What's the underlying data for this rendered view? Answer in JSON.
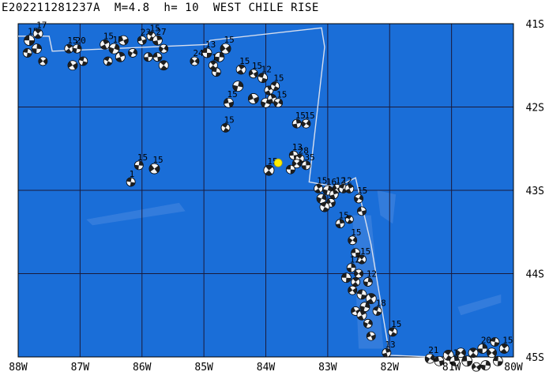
{
  "title": "E202211281237A  M=4.8  h= 10  WEST CHILE RISE",
  "colors": {
    "ocean": "#1a6ed8",
    "shallow": "#3f82de",
    "ridge_line": "#d8dfee",
    "grid": "#1a1a3a",
    "epicenter": "#ffee00",
    "beachball_dark": "#1e1e1e",
    "beachball_light": "#f4f4f4"
  },
  "axes": {
    "x_ticks": [
      "88W",
      "87W",
      "86W",
      "85W",
      "84W",
      "83W",
      "82W",
      "81W",
      "80W"
    ],
    "y_ticks": [
      "41S",
      "42S",
      "43S",
      "44S",
      "45S"
    ],
    "lon_range": [
      -88,
      -80
    ],
    "lat_range": [
      -45,
      -41
    ]
  },
  "epicenter": {
    "name": "E202211281237A",
    "lon": -83.8,
    "lat": -42.67
  },
  "ridge_segments": [
    [
      [
        -88.0,
        -41.15
      ],
      [
        -87.5,
        -41.15
      ],
      [
        -87.45,
        -41.33
      ],
      [
        -84.95,
        -41.25
      ],
      [
        -84.9,
        -41.2
      ],
      [
        -83.1,
        -41.05
      ],
      [
        -83.05,
        -41.28
      ],
      [
        -83.3,
        -42.9
      ],
      [
        -82.85,
        -42.96
      ],
      [
        -82.55,
        -42.85
      ],
      [
        -82.3,
        -43.65
      ],
      [
        -82.0,
        -44.98
      ],
      [
        -81.3,
        -45.0
      ]
    ]
  ],
  "mechanisms": [
    {
      "lon": -87.82,
      "lat": -41.2,
      "label": "15",
      "s": 13
    },
    {
      "lon": -87.68,
      "lat": -41.12,
      "label": "17",
      "s": 12
    },
    {
      "lon": -87.7,
      "lat": -41.3,
      "label": "",
      "s": 12
    },
    {
      "lon": -87.6,
      "lat": -41.45,
      "label": "",
      "s": 11
    },
    {
      "lon": -87.85,
      "lat": -41.35,
      "label": "",
      "s": 11
    },
    {
      "lon": -87.18,
      "lat": -41.3,
      "label": "15",
      "s": 11
    },
    {
      "lon": -87.05,
      "lat": -41.3,
      "label": "20",
      "s": 11
    },
    {
      "lon": -87.12,
      "lat": -41.5,
      "label": "",
      "s": 12
    },
    {
      "lon": -86.95,
      "lat": -41.45,
      "label": "",
      "s": 11
    },
    {
      "lon": -86.6,
      "lat": -41.25,
      "label": "15",
      "s": 12
    },
    {
      "lon": -86.45,
      "lat": -41.3,
      "label": "15",
      "s": 13
    },
    {
      "lon": -86.3,
      "lat": -41.2,
      "label": "",
      "s": 12
    },
    {
      "lon": -86.55,
      "lat": -41.45,
      "label": "",
      "s": 11
    },
    {
      "lon": -86.35,
      "lat": -41.4,
      "label": "",
      "s": 12
    },
    {
      "lon": -86.15,
      "lat": -41.35,
      "label": "",
      "s": 11
    },
    {
      "lon": -86.0,
      "lat": -41.2,
      "label": "23",
      "s": 11
    },
    {
      "lon": -85.85,
      "lat": -41.15,
      "label": "15",
      "s": 11
    },
    {
      "lon": -85.75,
      "lat": -41.2,
      "label": "27",
      "s": 12
    },
    {
      "lon": -85.65,
      "lat": -41.3,
      "label": "",
      "s": 11
    },
    {
      "lon": -85.75,
      "lat": -41.4,
      "label": "",
      "s": 11
    },
    {
      "lon": -85.65,
      "lat": -41.5,
      "label": "",
      "s": 12
    },
    {
      "lon": -85.9,
      "lat": -41.4,
      "label": "",
      "s": 11
    },
    {
      "lon": -85.15,
      "lat": -41.45,
      "label": "24",
      "s": 11
    },
    {
      "lon": -84.95,
      "lat": -41.35,
      "label": "13",
      "s": 12
    },
    {
      "lon": -84.85,
      "lat": -41.5,
      "label": "15",
      "s": 11
    },
    {
      "lon": -84.75,
      "lat": -41.4,
      "label": "",
      "s": 12
    },
    {
      "lon": -84.65,
      "lat": -41.3,
      "label": "15",
      "s": 13
    },
    {
      "lon": -84.8,
      "lat": -41.58,
      "label": "",
      "s": 11
    },
    {
      "lon": -84.4,
      "lat": -41.55,
      "label": "15",
      "s": 12
    },
    {
      "lon": -84.45,
      "lat": -41.75,
      "label": "",
      "s": 13
    },
    {
      "lon": -84.2,
      "lat": -41.6,
      "label": "15",
      "s": 11
    },
    {
      "lon": -84.05,
      "lat": -41.65,
      "label": "12",
      "s": 12
    },
    {
      "lon": -83.95,
      "lat": -41.8,
      "label": "",
      "s": 11
    },
    {
      "lon": -84.0,
      "lat": -41.95,
      "label": "",
      "s": 12
    },
    {
      "lon": -84.2,
      "lat": -41.9,
      "label": "",
      "s": 13
    },
    {
      "lon": -83.85,
      "lat": -41.75,
      "label": "15",
      "s": 11
    },
    {
      "lon": -83.9,
      "lat": -41.9,
      "label": "",
      "s": 11
    },
    {
      "lon": -83.8,
      "lat": -41.95,
      "label": "15",
      "s": 11
    },
    {
      "lon": -84.6,
      "lat": -41.95,
      "label": "15",
      "s": 12
    },
    {
      "lon": -84.65,
      "lat": -42.25,
      "label": "15",
      "s": 11
    },
    {
      "lon": -83.5,
      "lat": -42.2,
      "label": "15",
      "s": 11
    },
    {
      "lon": -83.35,
      "lat": -42.2,
      "label": "15",
      "s": 11
    },
    {
      "lon": -83.55,
      "lat": -42.58,
      "label": "13",
      "s": 11
    },
    {
      "lon": -83.45,
      "lat": -42.62,
      "label": "28",
      "s": 11
    },
    {
      "lon": -83.35,
      "lat": -42.7,
      "label": "35",
      "s": 11
    },
    {
      "lon": -83.5,
      "lat": -42.68,
      "label": "",
      "s": 11
    },
    {
      "lon": -83.6,
      "lat": -42.75,
      "label": "",
      "s": 11
    },
    {
      "lon": -83.95,
      "lat": -42.76,
      "label": "15",
      "s": 13
    },
    {
      "lon": -86.05,
      "lat": -42.7,
      "label": "15",
      "s": 11
    },
    {
      "lon": -85.8,
      "lat": -42.74,
      "label": "15",
      "s": 13
    },
    {
      "lon": -86.18,
      "lat": -42.9,
      "label": "1",
      "s": 11
    },
    {
      "lon": -83.15,
      "lat": -42.98,
      "label": "15",
      "s": 11
    },
    {
      "lon": -83.0,
      "lat": -43.0,
      "label": "16",
      "s": 12
    },
    {
      "lon": -82.85,
      "lat": -42.98,
      "label": "12",
      "s": 11
    },
    {
      "lon": -82.75,
      "lat": -42.98,
      "label": "12",
      "s": 11
    },
    {
      "lon": -82.65,
      "lat": -42.98,
      "label": "",
      "s": 11
    },
    {
      "lon": -83.1,
      "lat": -43.1,
      "label": "",
      "s": 12
    },
    {
      "lon": -82.95,
      "lat": -43.15,
      "label": "",
      "s": 11
    },
    {
      "lon": -83.05,
      "lat": -43.2,
      "label": "",
      "s": 12
    },
    {
      "lon": -82.9,
      "lat": -43.05,
      "label": "",
      "s": 11
    },
    {
      "lon": -82.5,
      "lat": -43.1,
      "label": "15",
      "s": 11
    },
    {
      "lon": -82.45,
      "lat": -43.25,
      "label": "",
      "s": 11
    },
    {
      "lon": -82.65,
      "lat": -43.35,
      "label": "",
      "s": 10
    },
    {
      "lon": -82.8,
      "lat": -43.4,
      "label": "15",
      "s": 11
    },
    {
      "lon": -82.6,
      "lat": -43.6,
      "label": "15",
      "s": 11
    },
    {
      "lon": -82.55,
      "lat": -43.75,
      "label": "",
      "s": 11
    },
    {
      "lon": -82.45,
      "lat": -43.83,
      "label": "15",
      "s": 11
    },
    {
      "lon": -82.62,
      "lat": -43.93,
      "label": "12",
      "s": 11
    },
    {
      "lon": -82.5,
      "lat": -44.0,
      "label": "",
      "s": 11
    },
    {
      "lon": -82.7,
      "lat": -44.05,
      "label": "",
      "s": 12
    },
    {
      "lon": -82.55,
      "lat": -44.1,
      "label": "",
      "s": 11
    },
    {
      "lon": -82.35,
      "lat": -44.1,
      "label": "12",
      "s": 11
    },
    {
      "lon": -82.6,
      "lat": -44.2,
      "label": "",
      "s": 11
    },
    {
      "lon": -82.45,
      "lat": -44.25,
      "label": "",
      "s": 12
    },
    {
      "lon": -82.3,
      "lat": -44.3,
      "label": "",
      "s": 13
    },
    {
      "lon": -82.4,
      "lat": -44.4,
      "label": "",
      "s": 12
    },
    {
      "lon": -82.55,
      "lat": -44.45,
      "label": "",
      "s": 11
    },
    {
      "lon": -82.2,
      "lat": -44.45,
      "label": "18",
      "s": 11
    },
    {
      "lon": -82.45,
      "lat": -44.5,
      "label": "",
      "s": 12
    },
    {
      "lon": -82.35,
      "lat": -44.6,
      "label": "",
      "s": 11
    },
    {
      "lon": -82.3,
      "lat": -44.75,
      "label": "",
      "s": 11
    },
    {
      "lon": -81.95,
      "lat": -44.7,
      "label": "15",
      "s": 11
    },
    {
      "lon": -82.05,
      "lat": -44.95,
      "label": "13",
      "s": 11
    },
    {
      "lon": -81.35,
      "lat": -45.02,
      "label": "21",
      "s": 12
    },
    {
      "lon": -81.2,
      "lat": -45.05,
      "label": "",
      "s": 12
    },
    {
      "lon": -81.05,
      "lat": -44.98,
      "label": "",
      "s": 13
    },
    {
      "lon": -80.95,
      "lat": -45.05,
      "label": "12",
      "s": 12
    },
    {
      "lon": -80.85,
      "lat": -44.95,
      "label": "",
      "s": 12
    },
    {
      "lon": -80.75,
      "lat": -45.05,
      "label": "",
      "s": 13
    },
    {
      "lon": -80.65,
      "lat": -44.95,
      "label": "",
      "s": 12
    },
    {
      "lon": -80.5,
      "lat": -44.9,
      "label": "20",
      "s": 12
    },
    {
      "lon": -80.35,
      "lat": -44.95,
      "label": "",
      "s": 12
    },
    {
      "lon": -80.25,
      "lat": -45.05,
      "label": "",
      "s": 12
    },
    {
      "lon": -80.15,
      "lat": -44.9,
      "label": "15",
      "s": 12
    },
    {
      "lon": -80.45,
      "lat": -45.1,
      "label": "",
      "s": 12
    },
    {
      "lon": -80.6,
      "lat": -45.12,
      "label": "",
      "s": 11
    },
    {
      "lon": -80.3,
      "lat": -44.82,
      "label": "",
      "s": 11
    }
  ]
}
